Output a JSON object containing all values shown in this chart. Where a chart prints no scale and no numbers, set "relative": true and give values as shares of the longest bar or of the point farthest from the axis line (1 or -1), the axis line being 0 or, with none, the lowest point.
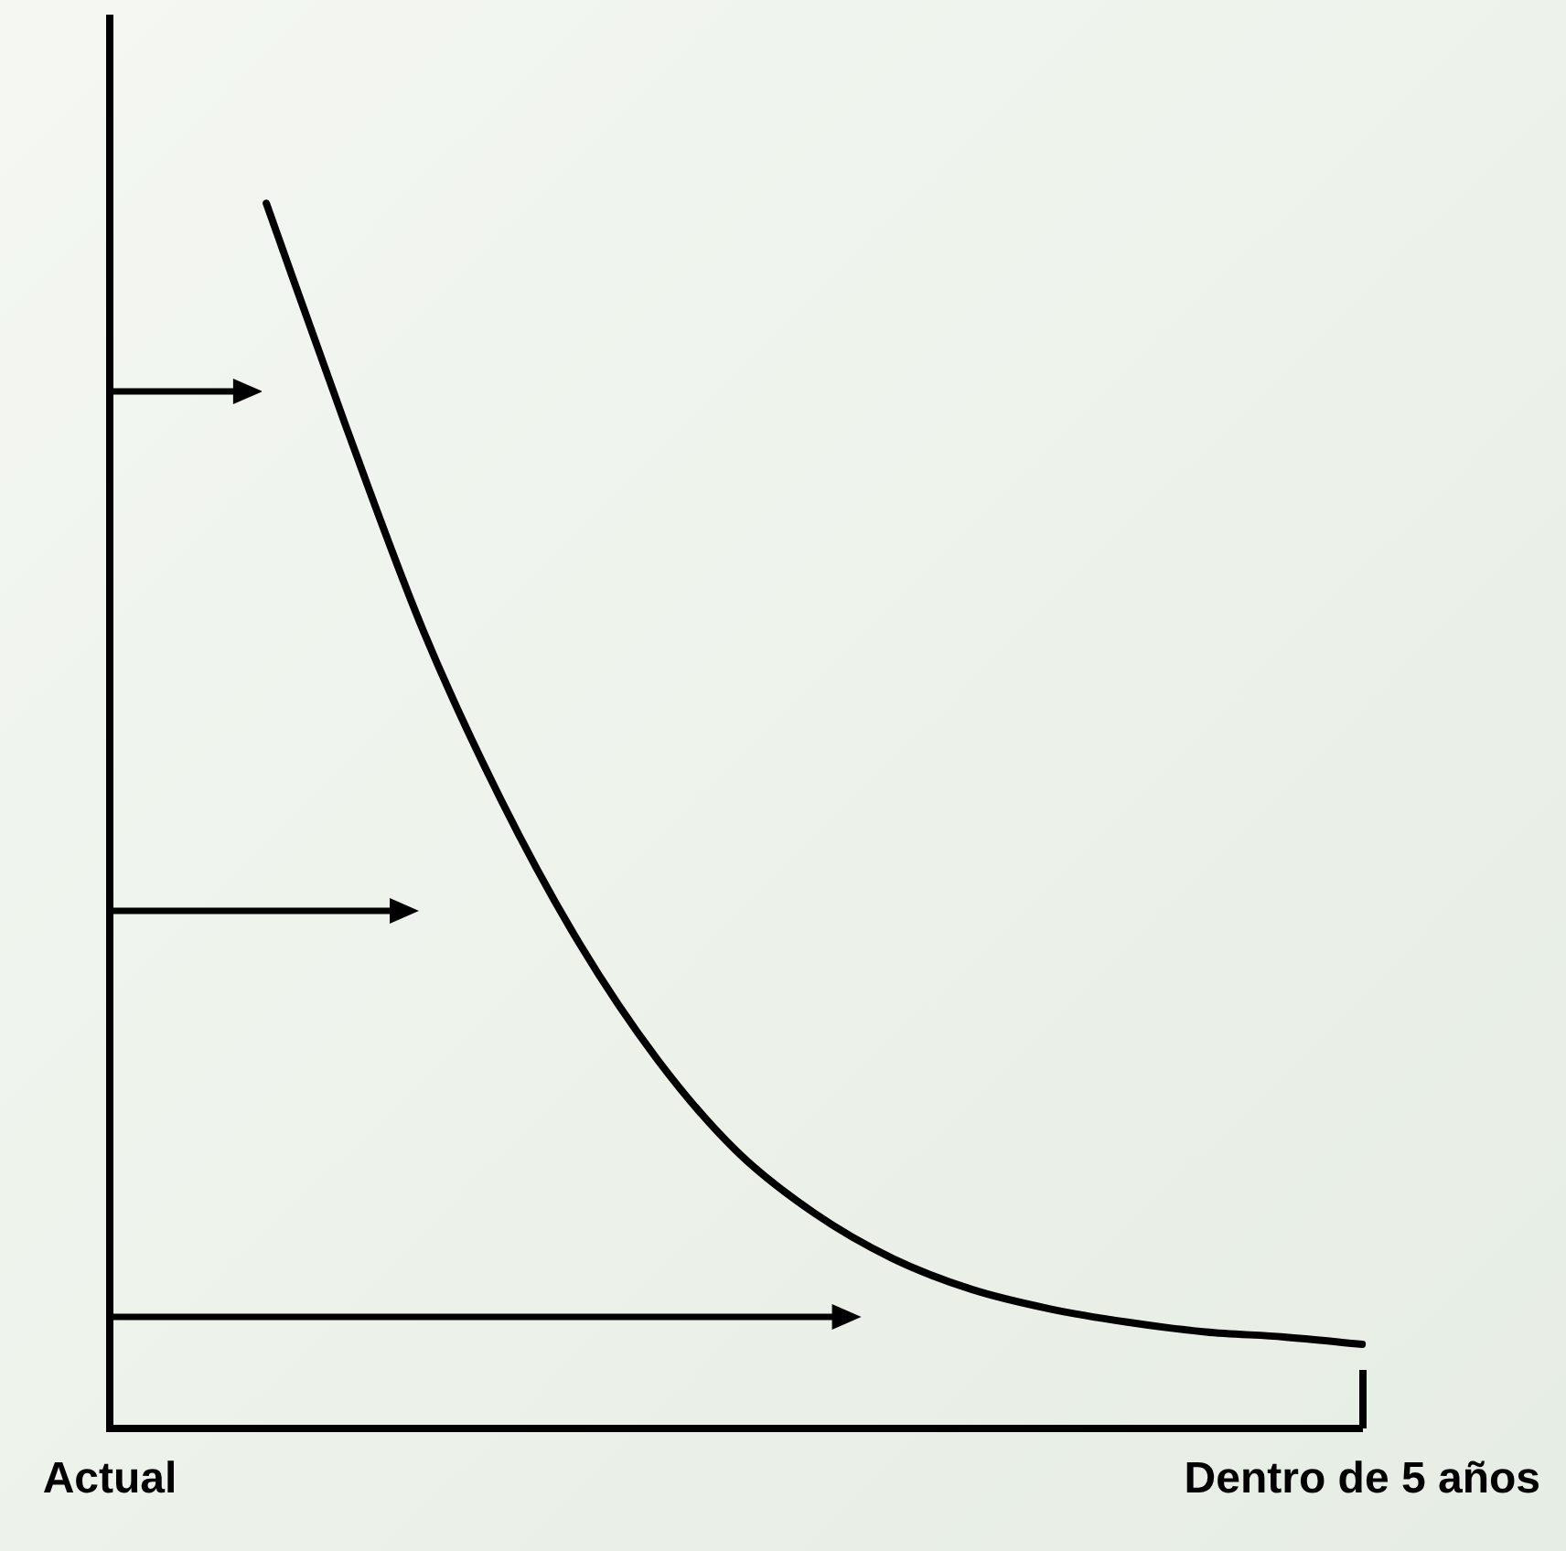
{
  "chart_data": {
    "type": "line",
    "relative": true,
    "categories": [
      "Actual",
      null,
      null,
      null,
      null,
      null,
      null,
      null,
      null,
      null,
      null,
      null,
      null,
      null,
      null,
      null,
      "Dentro de 5 años"
    ],
    "series": [
      {
        "color": "#000000",
        "values": [
          null,
          null,
          1.0,
          0.821,
          0.652,
          0.513,
          0.396,
          0.301,
          0.227,
          0.176,
          0.139,
          0.114,
          0.098,
          0.087,
          0.079,
          0.075,
          0.069
        ]
      }
    ],
    "grid": false,
    "legend": false,
    "marker": "none",
    "line_style": "solid"
  }
}
